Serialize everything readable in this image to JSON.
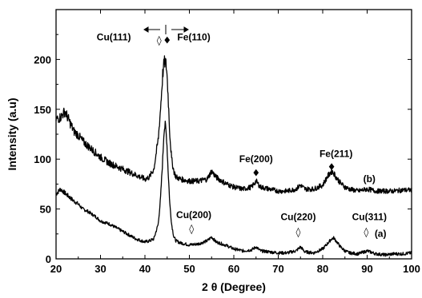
{
  "chart_data": {
    "type": "line",
    "title": "",
    "xlabel": "2 θ (Degree)",
    "ylabel": "Intensity (a.u)",
    "xlim": [
      20,
      100
    ],
    "ylim": [
      0,
      250
    ],
    "x_ticks": [
      "20",
      "30",
      "40",
      "50",
      "60",
      "70",
      "80",
      "90",
      "100"
    ],
    "y_ticks": [
      "0",
      "50",
      "100",
      "150",
      "200"
    ],
    "grid": false,
    "series": [
      {
        "name": "(a)",
        "color": "#000000",
        "x": [
          20,
          21,
          22,
          23,
          24,
          25,
          26,
          27,
          28,
          29,
          30,
          32,
          34,
          36,
          38,
          40,
          41,
          42,
          43,
          43.5,
          44,
          44.3,
          44.6,
          44.9,
          45.2,
          45.6,
          46,
          46.5,
          47,
          48,
          50,
          52,
          54,
          55,
          56,
          58,
          60,
          62,
          64,
          65,
          66,
          68,
          70,
          72,
          74,
          75,
          76,
          78,
          80,
          81,
          82,
          82.5,
          83,
          84,
          85,
          86,
          88,
          90,
          92,
          94,
          96,
          98,
          100
        ],
        "y": [
          65,
          70,
          66,
          62,
          58,
          55,
          50,
          48,
          45,
          42,
          38,
          35,
          30,
          25,
          20,
          17,
          18,
          20,
          35,
          60,
          100,
          130,
          134,
          120,
          90,
          55,
          35,
          22,
          18,
          16,
          14,
          15,
          18,
          22,
          17,
          14,
          10,
          8,
          9,
          12,
          8,
          7,
          6,
          6,
          8,
          12,
          7,
          6,
          10,
          15,
          20,
          21,
          18,
          12,
          8,
          6,
          5,
          8,
          5,
          4,
          5,
          5,
          6
        ]
      },
      {
        "name": "(b)",
        "color": "#000000",
        "x": [
          20,
          21,
          22,
          23,
          24,
          25,
          26,
          27,
          28,
          29,
          30,
          32,
          34,
          36,
          38,
          40,
          41,
          42,
          43,
          43.5,
          44,
          44.3,
          44.6,
          44.9,
          45.2,
          45.6,
          46,
          46.5,
          47,
          48,
          50,
          52,
          54,
          55,
          56,
          58,
          60,
          62,
          64,
          65,
          66,
          68,
          70,
          72,
          74,
          75,
          76,
          78,
          80,
          81,
          82,
          82.5,
          83,
          84,
          85,
          86,
          88,
          90,
          92,
          94,
          96,
          98,
          100
        ],
        "y": [
          140,
          142,
          148,
          138,
          128,
          124,
          118,
          114,
          110,
          106,
          102,
          96,
          92,
          88,
          84,
          80,
          82,
          90,
          120,
          150,
          185,
          196,
          198,
          190,
          165,
          125,
          100,
          88,
          82,
          80,
          78,
          78,
          80,
          88,
          82,
          76,
          72,
          70,
          72,
          78,
          72,
          70,
          68,
          68,
          70,
          74,
          70,
          70,
          74,
          82,
          88,
          86,
          82,
          76,
          72,
          70,
          68,
          70,
          68,
          68,
          68,
          69,
          69
        ]
      }
    ],
    "annotations": [
      {
        "text": "Cu(111)",
        "x": 33,
        "y": 219
      },
      {
        "text": "Fe(110)",
        "x": 51,
        "y": 219
      },
      {
        "text": "Fe(200)",
        "x": 65,
        "y": 97
      },
      {
        "text": "Fe(211)",
        "x": 83,
        "y": 102
      },
      {
        "text": "(b)",
        "x": 90.5,
        "y": 77
      },
      {
        "text": "Cu(200)",
        "x": 51,
        "y": 41
      },
      {
        "text": "Cu(220)",
        "x": 74.5,
        "y": 39
      },
      {
        "text": "Cu(311)",
        "x": 90.5,
        "y": 39
      },
      {
        "text": "(a)",
        "x": 93,
        "y": 22
      }
    ],
    "markers": [
      {
        "symbol": "◊",
        "x": 43.2,
        "y": 219
      },
      {
        "symbol": "♦",
        "x": 45,
        "y": 219
      },
      {
        "symbol": "♦",
        "x": 65,
        "y": 86
      },
      {
        "symbol": "♦",
        "x": 82,
        "y": 92
      },
      {
        "symbol": "◊",
        "x": 50.5,
        "y": 30
      },
      {
        "symbol": "◊",
        "x": 74.5,
        "y": 27
      },
      {
        "symbol": "◊",
        "x": 89.8,
        "y": 27
      }
    ]
  }
}
